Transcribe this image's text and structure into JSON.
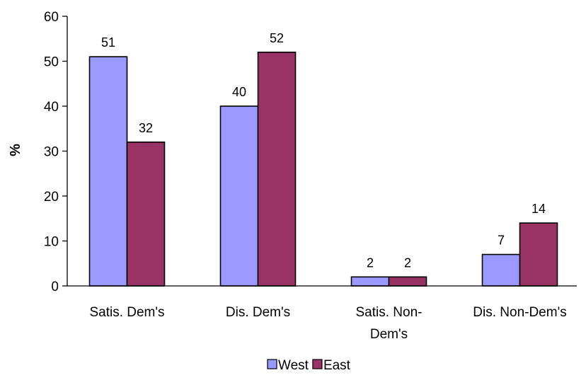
{
  "chart_data": {
    "type": "bar",
    "title": "",
    "xlabel": "",
    "ylabel": "%",
    "ylim": [
      0,
      60
    ],
    "yticks": [
      0,
      10,
      20,
      30,
      40,
      50,
      60
    ],
    "grid": false,
    "legend_position": "bottom",
    "categories": [
      [
        "Satis. Dem's"
      ],
      [
        "Dis. Dem's"
      ],
      [
        "Satis. Non-",
        "Dem's"
      ],
      [
        "Dis. Non-Dem's"
      ]
    ],
    "series": [
      {
        "name": "West",
        "color": "#9999ff",
        "values": [
          51,
          40,
          2,
          7
        ]
      },
      {
        "name": "East",
        "color": "#993366",
        "values": [
          32,
          52,
          2,
          14
        ]
      }
    ]
  }
}
